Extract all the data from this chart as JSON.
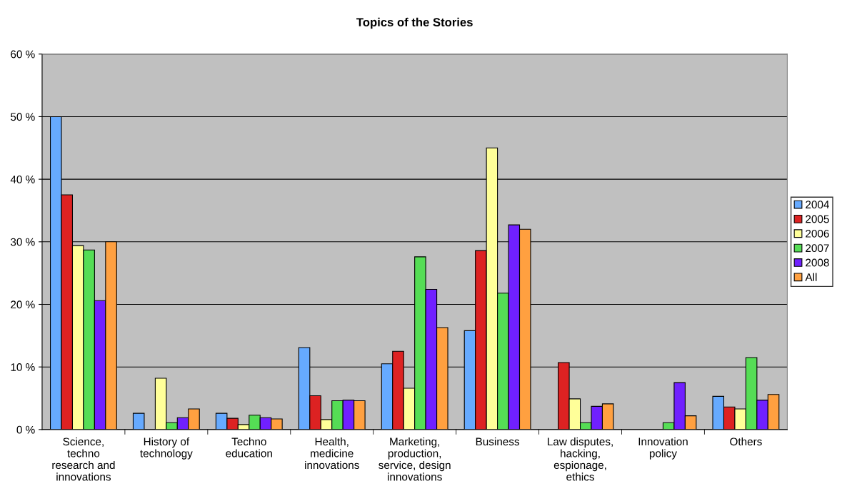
{
  "chart_data": {
    "type": "bar",
    "title": "Topics of the Stories",
    "categories": [
      "Science,\ntechno\nresearch and\ninnovations",
      "History of\ntechnology",
      "Techno\neducation",
      "Health,\nmedicine\ninnovations",
      "Marketing,\nproduction,\nservice, design\ninnovations",
      "Business",
      "Law disputes,\nhacking,\nespionage,\nethics",
      "Innovation\npolicy",
      "Others"
    ],
    "series": [
      {
        "name": "2004",
        "color": "#66aaff",
        "values": [
          50,
          2.6,
          2.6,
          13.1,
          10.5,
          15.8,
          null,
          null,
          5.3
        ]
      },
      {
        "name": "2005",
        "color": "#dd2222",
        "values": [
          37.5,
          null,
          1.8,
          5.4,
          12.5,
          28.6,
          10.7,
          null,
          3.6
        ]
      },
      {
        "name": "2006",
        "color": "#ffff99",
        "values": [
          29.4,
          8.2,
          0.8,
          1.6,
          6.6,
          45,
          4.9,
          null,
          3.3
        ]
      },
      {
        "name": "2007",
        "color": "#55dd55",
        "values": [
          28.7,
          1.1,
          2.3,
          4.6,
          27.6,
          21.8,
          1.1,
          1.1,
          11.5
        ]
      },
      {
        "name": "2008",
        "color": "#7020ff",
        "values": [
          20.6,
          1.9,
          1.9,
          4.7,
          22.4,
          32.7,
          3.7,
          7.5,
          4.7
        ]
      },
      {
        "name": "All",
        "color": "#ffa040",
        "values": [
          30,
          3.3,
          1.7,
          4.6,
          16.3,
          32,
          4.1,
          2.2,
          5.6
        ]
      }
    ],
    "ylim": [
      0,
      60
    ],
    "yticks": [
      {
        "value": 0,
        "label": "0 %"
      },
      {
        "value": 10,
        "label": "10 %"
      },
      {
        "value": 20,
        "label": "20 %"
      },
      {
        "value": 30,
        "label": "30 %"
      },
      {
        "value": 40,
        "label": "40 %"
      },
      {
        "value": 50,
        "label": "50 %"
      },
      {
        "value": 60,
        "label": "60 %"
      }
    ],
    "grid": "y",
    "legend": "right"
  }
}
